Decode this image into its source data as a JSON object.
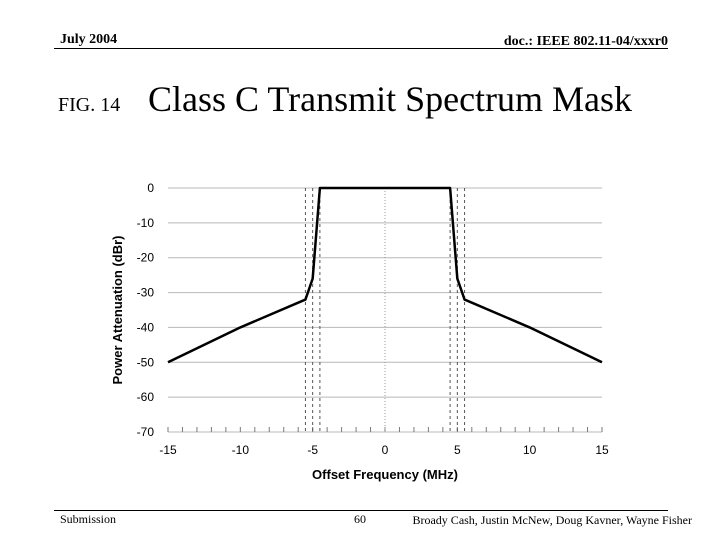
{
  "header": {
    "date": "July 2004",
    "doc_id": "doc.: IEEE 802.11-04/xxxr0"
  },
  "slide": {
    "fig_label": "FIG. 14",
    "title": "Class C Transmit Spectrum Mask"
  },
  "footer": {
    "submission": "Submission",
    "page_number": "60",
    "authors": "Broady Cash, Justin McNew, Doug Kavner, Wayne Fisher"
  },
  "chart_data": {
    "type": "line",
    "title": "",
    "xlabel": "Offset Frequency (MHz)",
    "ylabel": "Power Attenuation (dBr)",
    "xlim": [
      -15,
      15
    ],
    "ylim": [
      -70,
      0
    ],
    "xticks": [
      -15,
      -10,
      -5,
      0,
      5,
      10,
      15
    ],
    "yticks": [
      0,
      -10,
      -20,
      -30,
      -40,
      -50,
      -60,
      -70
    ],
    "xtick_labels": [
      "-15",
      "-10",
      "-5",
      "0",
      "5",
      "10",
      "15"
    ],
    "ytick_labels": [
      "0",
      "-10",
      "-20",
      "-30",
      "-40",
      "-50",
      "-60",
      "-70"
    ],
    "grid": {
      "y_major": true,
      "x_minor": true
    },
    "series": [
      {
        "name": "mask",
        "color": "#000000",
        "x": [
          -15,
          -10,
          -5.5,
          -5,
          -4.5,
          4.5,
          5,
          5.5,
          10,
          15
        ],
        "y": [
          -50,
          -40,
          -32,
          -26,
          0,
          0,
          -26,
          -32,
          -40,
          -50
        ]
      }
    ],
    "reference_lines": [
      {
        "x": -5.5,
        "style": "dashed"
      },
      {
        "x": -5,
        "style": "dashed"
      },
      {
        "x": -4.5,
        "style": "dashed"
      },
      {
        "x": 0,
        "style": "dotted"
      },
      {
        "x": 4.5,
        "style": "dashed"
      },
      {
        "x": 5,
        "style": "dashed"
      },
      {
        "x": 5.5,
        "style": "dashed"
      }
    ]
  }
}
